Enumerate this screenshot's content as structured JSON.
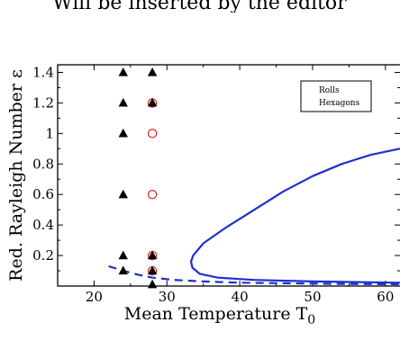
{
  "header_text": "Will be inserted by the editor",
  "chart_data": {
    "type": "scatter",
    "title": "",
    "xlabel": "Mean Temperature T",
    "xlabel_subscript": "0",
    "ylabel": "Red. Rayleigh Number ε",
    "xlim": [
      15,
      62
    ],
    "ylim": [
      0,
      1.45
    ],
    "x_ticks": [
      20,
      30,
      40,
      50,
      60
    ],
    "y_ticks": [
      0.2,
      0.4,
      0.6,
      0.8,
      1,
      1.2,
      1.4
    ],
    "y_tick_labels": [
      "0.2",
      "0.4",
      "0.6",
      "0.8",
      "1",
      "1.2",
      "1.4"
    ],
    "legend_position": "top-right",
    "grid": false,
    "series": [
      {
        "name": "Rolls",
        "marker": "open-circle",
        "color": "#e02020",
        "points": [
          [
            28,
            1.2
          ],
          [
            28,
            1.0
          ],
          [
            28,
            0.6
          ],
          [
            28,
            0.2
          ],
          [
            28,
            0.1
          ]
        ]
      },
      {
        "name": "Hexagons",
        "marker": "filled-triangle",
        "color": "#000000",
        "points": [
          [
            24,
            1.4
          ],
          [
            28,
            1.4
          ],
          [
            24,
            1.2
          ],
          [
            28,
            1.2
          ],
          [
            24,
            1.0
          ],
          [
            24,
            0.6
          ],
          [
            24,
            0.2
          ],
          [
            28,
            0.2
          ],
          [
            24,
            0.1
          ],
          [
            28,
            0.1
          ],
          [
            28,
            0.01
          ]
        ]
      }
    ],
    "curves": [
      {
        "style": "solid",
        "color": "#1f2fd0",
        "points": [
          [
            62,
            0.9
          ],
          [
            58,
            0.86
          ],
          [
            54,
            0.8
          ],
          [
            50,
            0.72
          ],
          [
            46,
            0.62
          ],
          [
            42,
            0.5
          ],
          [
            38,
            0.38
          ],
          [
            35,
            0.28
          ],
          [
            33.6,
            0.2
          ],
          [
            33.3,
            0.16
          ],
          [
            33.5,
            0.12
          ],
          [
            34.5,
            0.08
          ],
          [
            37,
            0.055
          ],
          [
            42,
            0.04
          ],
          [
            50,
            0.03
          ],
          [
            58,
            0.025
          ],
          [
            62,
            0.022
          ]
        ]
      },
      {
        "style": "dashed",
        "color": "#1f2fd0",
        "points": [
          [
            22,
            0.13
          ],
          [
            24,
            0.1
          ],
          [
            26,
            0.075
          ],
          [
            28,
            0.055
          ],
          [
            31,
            0.04
          ],
          [
            35,
            0.03
          ],
          [
            40,
            0.022
          ],
          [
            46,
            0.018
          ],
          [
            52,
            0.015
          ],
          [
            58,
            0.013
          ],
          [
            62,
            0.012
          ]
        ]
      }
    ]
  }
}
